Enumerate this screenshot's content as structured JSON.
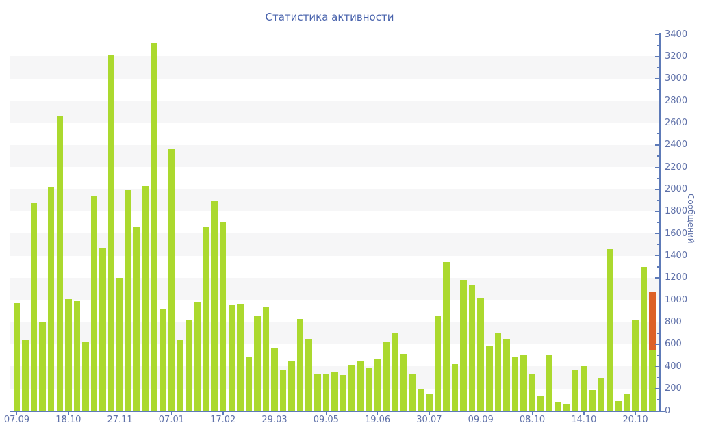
{
  "chart_data": {
    "type": "bar",
    "title": "Статистика активности",
    "ylabel": "Сообщений",
    "xlabel": "",
    "ylim": [
      0,
      3400
    ],
    "y_major_tick_step": 200,
    "y_minor_tick_step": 100,
    "grid": "horizontal striped bands, one band per 200 units, alternating white / light gray",
    "legend_position": "none",
    "x_tick_labels": [
      "07.09",
      "18.10",
      "27.11",
      "07.01",
      "17.02",
      "29.03",
      "09.05",
      "19.06",
      "30.07",
      "09.09",
      "08.10",
      "14.10",
      "20.10"
    ],
    "x_tick_label_every_n_bars": 6,
    "values": [
      970,
      635,
      1875,
      805,
      2020,
      2660,
      1010,
      990,
      620,
      1940,
      1470,
      3210,
      1200,
      1990,
      1660,
      2030,
      3320,
      920,
      2370,
      635,
      820,
      980,
      1660,
      1890,
      1700,
      950,
      965,
      490,
      855,
      935,
      565,
      370,
      445,
      830,
      650,
      330,
      335,
      350,
      320,
      410,
      445,
      390,
      470,
      625,
      705,
      515,
      335,
      195,
      155,
      855,
      1340,
      420,
      1180,
      1130,
      1020,
      580,
      705,
      650,
      485,
      510,
      325,
      130,
      505,
      80,
      60,
      370,
      400,
      185,
      290,
      1460,
      85,
      155,
      820,
      1300,
      1070
    ],
    "last_bar": {
      "type": "stacked",
      "green_segment_top": 550,
      "orange_segment_top": 1070
    },
    "colors": {
      "bar": "#abd92e",
      "last_bar_highlight": "#dd6127",
      "axis": "#5d7ab8",
      "tick_text": "#5e70a8",
      "title_text": "#4a64ad",
      "stripe": "#f6f6f7",
      "background": "#ffffff"
    }
  }
}
